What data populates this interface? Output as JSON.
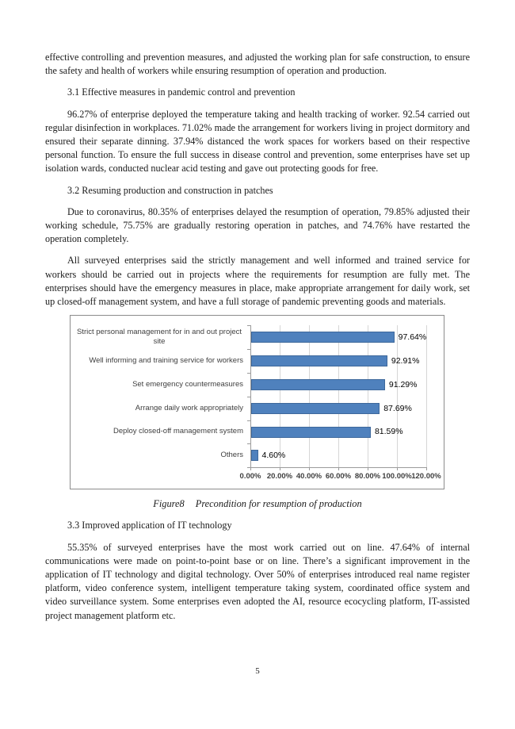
{
  "page": {
    "number": "5"
  },
  "document": {
    "paragraph_continuation": "effective controlling and prevention measures, and adjusted the working plan for safe construction, to ensure the safety and health of workers while ensuring resumption of operation and production.",
    "heading_3_1": "3.1 Effective measures in pandemic control and prevention",
    "paragraph_3_1": "96.27% of enterprise deployed the temperature taking and health tracking of worker. 92.54 carried out regular disinfection in workplaces. 71.02% made the arrangement for workers living in project dormitory and ensured their separate dinning. 37.94% distanced the work spaces for workers based on their respective personal function. To ensure the full success in disease control and prevention, some enterprises have set up isolation wards, conducted nuclear acid testing and gave out protecting goods for free.",
    "heading_3_2": "3.2 Resuming production and construction in patches",
    "paragraph_3_2_a": "Due to coronavirus, 80.35% of enterprises delayed the resumption of operation, 79.85% adjusted their working schedule, 75.75% are gradually restoring operation in patches, and 74.76% have restarted the operation completely.",
    "paragraph_3_2_b": "All surveyed enterprises said the strictly management and well informed and trained service for workers should be carried out in projects where the requirements for resumption are fully met. The enterprises should have the emergency measures in place, make appropriate arrangement for daily work, set up closed-off management system, and have a full storage of pandemic preventing goods and materials.",
    "figure_caption": {
      "label": "Figure8",
      "text": "Precondition for resumption of production"
    },
    "heading_3_3": "3.3 Improved application of IT technology",
    "paragraph_3_3": "55.35% of surveyed enterprises have the most work carried out on line. 47.64% of internal communications were made on point-to-point base or on line. There’s a significant improvement in the application of IT technology and digital technology. Over 50% of enterprises introduced real name register platform, video conference system, intelligent temperature taking system, coordinated office system and video surveillance system. Some enterprises even adopted the AI, resource ecocycling platform, IT-assisted project management platform etc."
  },
  "chart_data": {
    "type": "bar",
    "orientation": "horizontal",
    "title": "",
    "categories": [
      "Strict personal management for in and out project site",
      "Well informing and training service for workers",
      "Set emergency countermeasures",
      "Arrange daily work appropriately",
      "Deploy closed-off management system",
      "Others"
    ],
    "values": [
      97.64,
      92.91,
      91.29,
      87.69,
      81.59,
      4.6
    ],
    "data_labels": [
      "97.64%",
      "92.91%",
      "91.29%",
      "87.69%",
      "81.59%",
      "4.60%"
    ],
    "x_axis": {
      "min": 0,
      "max": 120,
      "tick_interval": 20,
      "tick_labels": [
        "0.00%",
        "20.00%",
        "40.00%",
        "60.00%",
        "80.00%",
        "100.00%",
        "120.00%"
      ]
    },
    "grid": true,
    "legend": "none",
    "bar_color": "#4F81BD",
    "bar_border_color": "#3E689B",
    "gridline_color": "#D6D6D6",
    "axis_color": "#9B9B9B",
    "category_label_color": "#3F3F3F",
    "data_label_color": "#000000"
  }
}
